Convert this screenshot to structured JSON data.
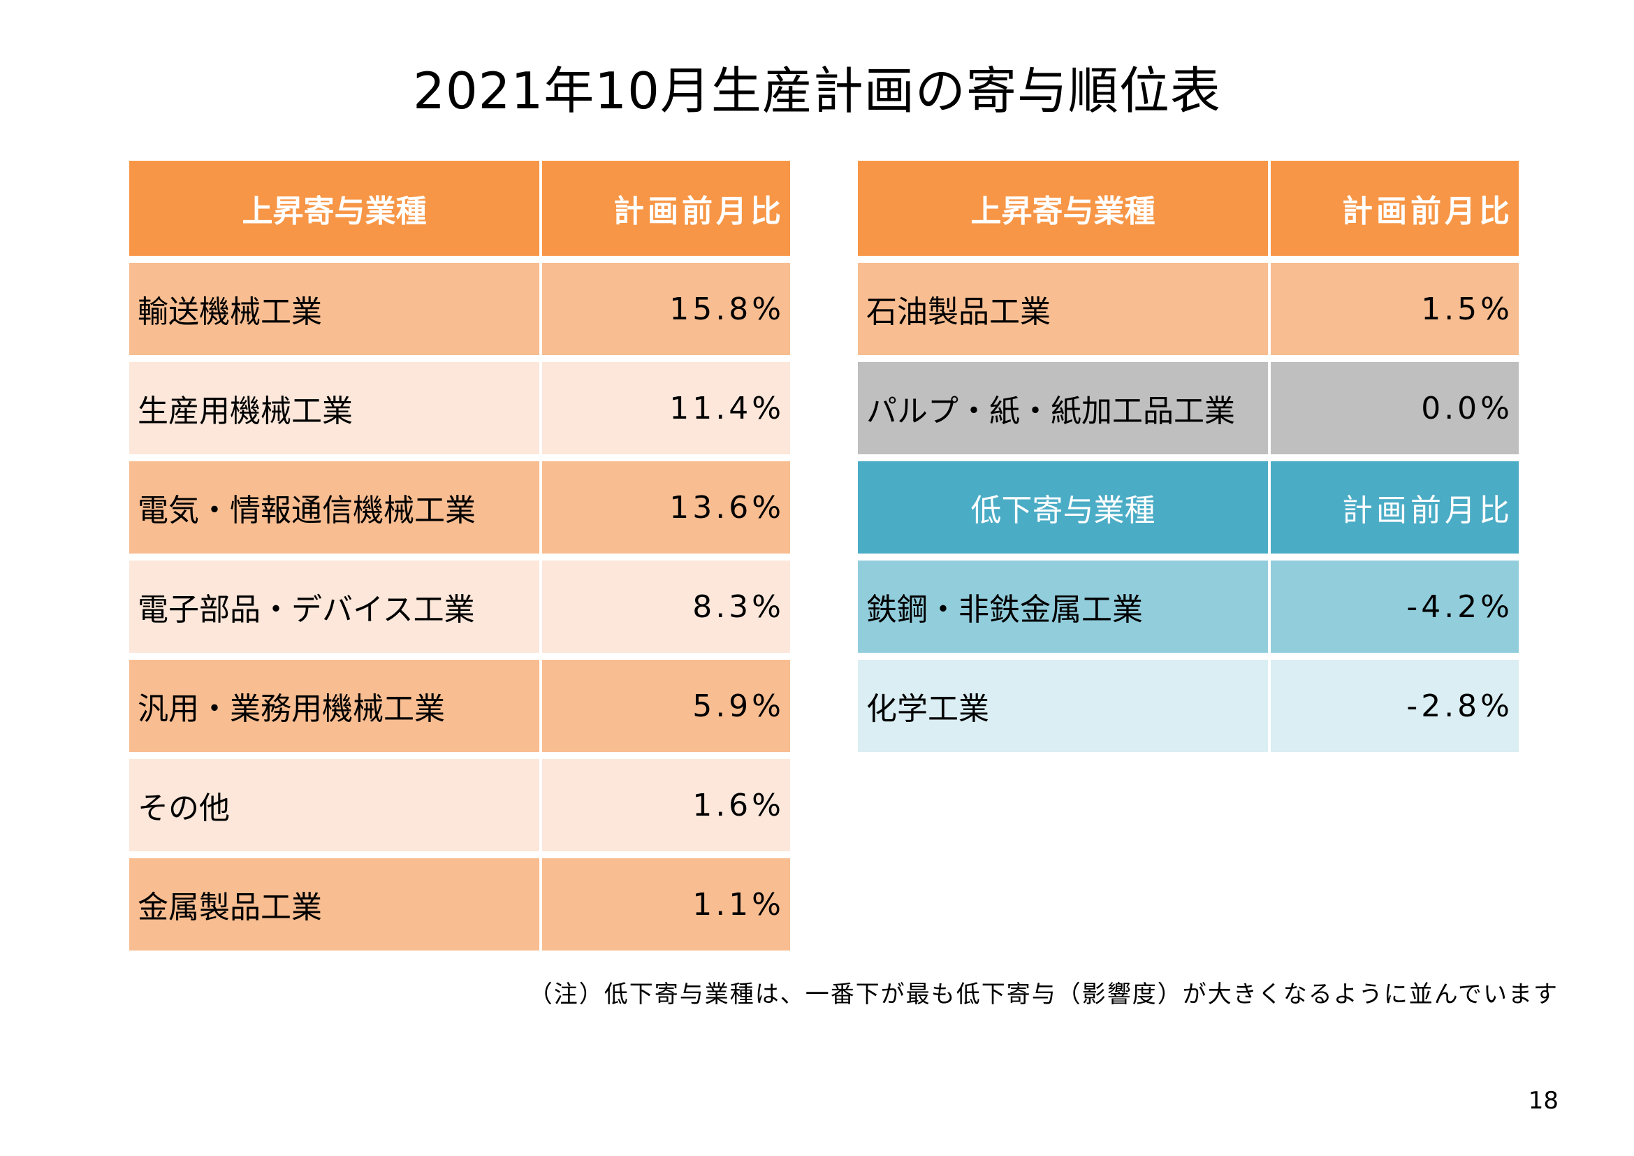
{
  "title": "2021年10月生産計画の寄与順位表",
  "left_table": {
    "header": {
      "industry": "上昇寄与業種",
      "value": "計画前月比"
    },
    "rows": [
      {
        "industry": "輸送機械工業",
        "value": "15.8%"
      },
      {
        "industry": "生産用機械工業",
        "value": "11.4%"
      },
      {
        "industry": "電気・情報通信機械工業",
        "value": "13.6%"
      },
      {
        "industry": "電子部品・デバイス工業",
        "value": "8.3%"
      },
      {
        "industry": "汎用・業務用機械工業",
        "value": "5.9%"
      },
      {
        "industry": "その他",
        "value": "1.6%"
      },
      {
        "industry": "金属製品工業",
        "value": "1.1%"
      }
    ]
  },
  "right_table": {
    "rise_header": {
      "industry": "上昇寄与業種",
      "value": "計画前月比"
    },
    "rise_rows": [
      {
        "industry": "石油製品工業",
        "value": "1.5%"
      },
      {
        "industry": "パルプ・紙・紙加工品工業",
        "value": "0.0%"
      }
    ],
    "fall_header": {
      "industry": "低下寄与業種",
      "value": "計画前月比"
    },
    "fall_rows": [
      {
        "industry": "鉄鋼・非鉄金属工業",
        "value": "-4.2%"
      },
      {
        "industry": "化学工業",
        "value": "-2.8%"
      }
    ]
  },
  "note": "（注）低下寄与業種は、一番下が最も低下寄与（影響度）が大きくなるように並んでいます",
  "page_number": "18",
  "colors": {
    "orange_header": "#f79646",
    "orange_dark": "#f8bd91",
    "orange_light": "#fce7da",
    "gray": "#bfbfbf",
    "blue_header": "#4bacc6",
    "blue_mid": "#92cddc",
    "blue_light": "#daeef3"
  }
}
